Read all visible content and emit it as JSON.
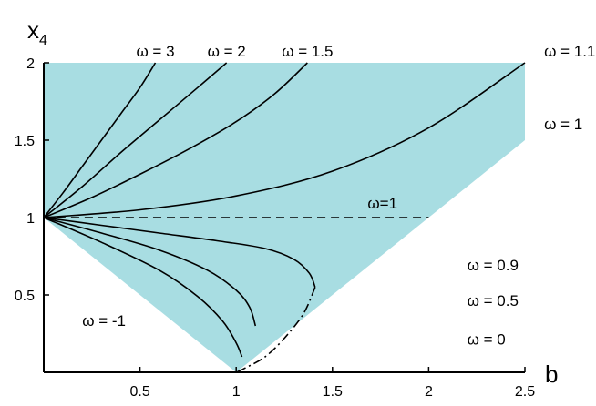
{
  "chart_data": {
    "type": "line",
    "xlabel": "b",
    "ylabel_main": "x",
    "ylabel_sub": "4",
    "xlim": [
      0,
      2.5
    ],
    "ylim": [
      0,
      2
    ],
    "x_ticks": [
      "0.5",
      "1",
      "1.5",
      "2",
      "2.5"
    ],
    "y_ticks": [
      "0.5",
      "1",
      "1.5",
      "2"
    ],
    "grid": false,
    "region": {
      "color": "#a8dde2",
      "boundary": [
        [
          0,
          1
        ],
        [
          1,
          0
        ],
        [
          2.5,
          1.5
        ],
        [
          2.5,
          2
        ],
        [
          0,
          2
        ]
      ]
    },
    "series": [
      {
        "name": "ω = 3",
        "style": "solid",
        "x": [
          0,
          0.1,
          0.2,
          0.3,
          0.4,
          0.5,
          0.58
        ],
        "y": [
          1,
          1.16,
          1.33,
          1.5,
          1.67,
          1.84,
          2
        ]
      },
      {
        "name": "ω = 2",
        "style": "solid",
        "x": [
          0,
          0.2,
          0.4,
          0.6,
          0.8,
          0.95
        ],
        "y": [
          1,
          1.2,
          1.42,
          1.63,
          1.84,
          2
        ]
      },
      {
        "name": "ω = 1.5",
        "style": "solid",
        "x": [
          0,
          0.25,
          0.5,
          0.75,
          1.0,
          1.2,
          1.37
        ],
        "y": [
          1,
          1.13,
          1.28,
          1.44,
          1.62,
          1.8,
          2
        ]
      },
      {
        "name": "ω = 1.1",
        "style": "solid",
        "x": [
          0,
          0.5,
          1.0,
          1.5,
          2.0,
          2.5
        ],
        "y": [
          1,
          1.05,
          1.14,
          1.3,
          1.58,
          2
        ]
      },
      {
        "name": "ω=1",
        "style": "dashed",
        "x": [
          0,
          1.0,
          2.0
        ],
        "y": [
          1,
          1,
          1
        ]
      },
      {
        "name": "ω = 0.9",
        "style": "solid",
        "x": [
          0,
          0.3,
          0.6,
          0.9,
          1.15,
          1.3,
          1.38,
          1.41
        ],
        "y": [
          1,
          0.95,
          0.9,
          0.85,
          0.8,
          0.73,
          0.64,
          0.55
        ]
      },
      {
        "name": "ω = 0.5",
        "style": "solid",
        "x": [
          0,
          0.3,
          0.6,
          0.85,
          1.0,
          1.07,
          1.1
        ],
        "y": [
          1,
          0.9,
          0.79,
          0.66,
          0.53,
          0.42,
          0.3
        ]
      },
      {
        "name": "ω = 0",
        "style": "solid",
        "x": [
          0,
          0.3,
          0.6,
          0.8,
          0.93,
          1.0,
          1.03
        ],
        "y": [
          1,
          0.84,
          0.66,
          0.49,
          0.33,
          0.19,
          0.1
        ]
      },
      {
        "name": "boundary",
        "style": "dashdot",
        "x": [
          1.41,
          1.35,
          1.25,
          1.15,
          1.05,
          1.0
        ],
        "y": [
          0.55,
          0.38,
          0.22,
          0.1,
          0.03,
          0
        ]
      }
    ],
    "annotations": [
      {
        "text": "ω = 3",
        "x": 0.58,
        "y": 2.04
      },
      {
        "text": "ω = 2",
        "x": 0.95,
        "y": 2.04
      },
      {
        "text": "ω = 1.5",
        "x": 1.37,
        "y": 2.04
      },
      {
        "text": "ω = 1.1",
        "x": 2.6,
        "y": 2.04
      },
      {
        "text": "ω = 1",
        "x": 2.6,
        "y": 1.57
      },
      {
        "text": "ω=1",
        "x": 1.76,
        "y": 1.06
      },
      {
        "text": "ω = 0.9",
        "x": 2.2,
        "y": 0.66
      },
      {
        "text": "ω = 0.5",
        "x": 2.2,
        "y": 0.43
      },
      {
        "text": "ω = 0",
        "x": 2.2,
        "y": 0.18
      },
      {
        "text": "ω = -1",
        "x": 0.2,
        "y": 0.3
      }
    ]
  }
}
